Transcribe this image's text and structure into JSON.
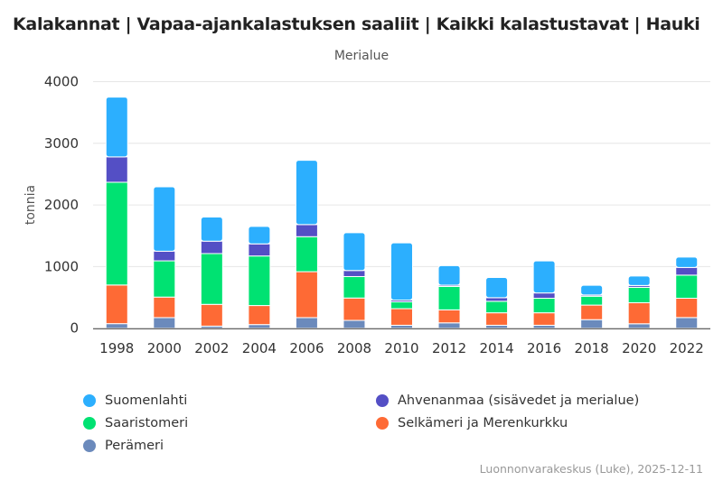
{
  "title": "Kalakannat | Vapaa-ajankalastuksen saaliit | Kaikki kalastustavat | Hauki",
  "subtitle": "Merialue",
  "credits": "Luonnonvarakeskus (Luke), 2025-12-11",
  "chart_data": {
    "type": "bar",
    "stacked": true,
    "title": "Kalakannat | Vapaa-ajankalastuksen saaliit | Kaikki kalastustavat | Hauki",
    "subtitle": "Merialue",
    "xlabel": "",
    "ylabel": "tonnia",
    "ylim": [
      0,
      4000
    ],
    "yticks": [
      "0",
      "1000",
      "2000",
      "3000",
      "4000"
    ],
    "grid": true,
    "legend_position": "bottom",
    "categories": [
      "1998",
      "2000",
      "2002",
      "2004",
      "2006",
      "2008",
      "2010",
      "2012",
      "2014",
      "2016",
      "2018",
      "2020",
      "2022"
    ],
    "series": [
      {
        "name": "Perämeri",
        "color": "#6b8abc",
        "values": [
          74,
          172,
          34,
          59,
          172,
          127,
          48,
          87,
          48,
          48,
          139,
          72,
          173
        ]
      },
      {
        "name": "Selkämeri ja Merenkurkku",
        "color": "#fe6a35",
        "values": [
          627,
          333,
          353,
          309,
          745,
          363,
          269,
          211,
          202,
          202,
          236,
          341,
          313
        ]
      },
      {
        "name": "Saaristomeri",
        "color": "#00e272",
        "values": [
          1667,
          588,
          824,
          804,
          568,
          348,
          111,
          380,
          187,
          236,
          144,
          250,
          375
        ]
      },
      {
        "name": "Ahvenanmaa (sisävedet ja merialue)",
        "color": "#544fc5",
        "values": [
          412,
          157,
          201,
          196,
          196,
          98,
          29,
          20,
          58,
          86,
          20,
          29,
          125
        ]
      },
      {
        "name": "Suomenlahti",
        "color": "#2caffe",
        "values": [
          970,
          1044,
          392,
          284,
          1044,
          613,
          928,
          317,
          327,
          519,
          158,
          154,
          168
        ]
      }
    ]
  }
}
